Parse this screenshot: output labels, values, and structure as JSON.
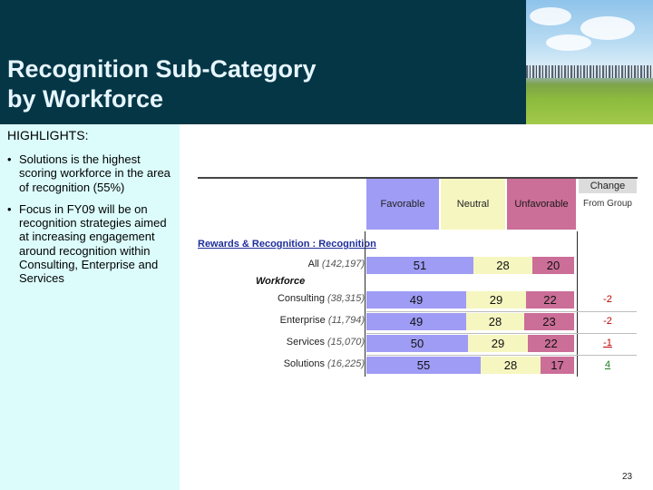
{
  "slide": {
    "title_line1": "Recognition Sub-Category",
    "title_line2": "by Workforce",
    "page_number": "23"
  },
  "highlights": {
    "heading": "HIGHLIGHTS:",
    "bullets": [
      "Solutions is the highest scoring workforce in the area of recognition (55%)",
      "Focus in FY09 will be on recognition strategies aimed at increasing engagement around recognition within Consulting, Enterprise and Services"
    ]
  },
  "table": {
    "columns": {
      "favorable": "Favorable",
      "neutral": "Neutral",
      "unfavorable": "Unfavorable"
    },
    "change_header": "Change",
    "change_sub": "From Group",
    "section_label": "Rewards & Recognition : Recognition",
    "workforce_label": "Workforce",
    "colors": {
      "favorable": "#9f9cf5",
      "neutral": "#f6f6c1",
      "unfavorable": "#cb6e98",
      "negative_change": "#c00000",
      "positive_change": "#1e7f1e"
    },
    "rows": [
      {
        "label": "All",
        "count": "(142,197)",
        "favorable": "51",
        "neutral": "28",
        "unfavorable": "20",
        "change": ""
      },
      {
        "label": "Consulting",
        "count": "(38,315)",
        "favorable": "49",
        "neutral": "29",
        "unfavorable": "22",
        "change": "-2"
      },
      {
        "label": "Enterprise",
        "count": "(11,794)",
        "favorable": "49",
        "neutral": "28",
        "unfavorable": "23",
        "change": "-2"
      },
      {
        "label": "Services",
        "count": "(15,070)",
        "favorable": "50",
        "neutral": "29",
        "unfavorable": "22",
        "change": "-1"
      },
      {
        "label": "Solutions",
        "count": "(16,225)",
        "favorable": "55",
        "neutral": "28",
        "unfavorable": "17",
        "change": "4"
      }
    ]
  }
}
